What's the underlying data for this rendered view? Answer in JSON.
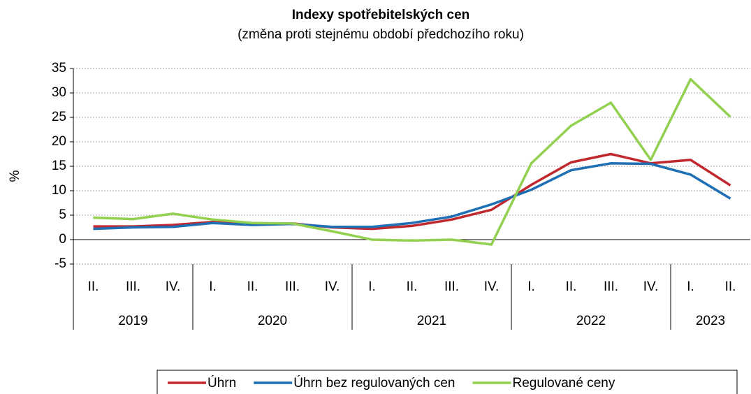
{
  "chart_data": {
    "type": "line",
    "title": "Indexy spotřebitelských cen",
    "subtitle": "(změna proti stejnému období předchozího roku)",
    "y_label": "%",
    "groups": [
      {
        "year": "2019",
        "quarters": [
          "II.",
          "III.",
          "IV."
        ]
      },
      {
        "year": "2020",
        "quarters": [
          "I.",
          "II.",
          "III.",
          "IV."
        ]
      },
      {
        "year": "2021",
        "quarters": [
          "I.",
          "II.",
          "III.",
          "IV."
        ]
      },
      {
        "year": "2022",
        "quarters": [
          "I.",
          "II.",
          "III.",
          "IV."
        ]
      },
      {
        "year": "2023",
        "quarters": [
          "I.",
          "II."
        ]
      }
    ],
    "series": [
      {
        "name": "Úhrn",
        "color": "#c0282d",
        "values": [
          2.7,
          2.7,
          3.0,
          3.6,
          3.1,
          3.3,
          2.5,
          2.2,
          2.8,
          4.1,
          6.1,
          11.2,
          15.8,
          17.5,
          15.6,
          16.3,
          11.1
        ]
      },
      {
        "name": "Úhrn bez regulovaných cen",
        "color": "#1f6fb4",
        "values": [
          2.2,
          2.5,
          2.6,
          3.4,
          3.0,
          3.2,
          2.6,
          2.6,
          3.4,
          4.7,
          7.2,
          10.2,
          14.2,
          15.6,
          15.5,
          13.3,
          8.4
        ]
      },
      {
        "name": "Regulované ceny",
        "color": "#92d050",
        "values": [
          4.5,
          4.2,
          5.3,
          4.1,
          3.4,
          3.3,
          1.7,
          0.0,
          -0.2,
          0.0,
          -1.0,
          15.6,
          23.3,
          28.0,
          16.3,
          32.8,
          25.1
        ]
      }
    ],
    "ylim": [
      -5,
      35
    ],
    "yticks": [
      -5,
      0,
      5,
      10,
      15,
      20,
      25,
      30,
      35
    ],
    "grid": true,
    "legend": "bottom"
  }
}
